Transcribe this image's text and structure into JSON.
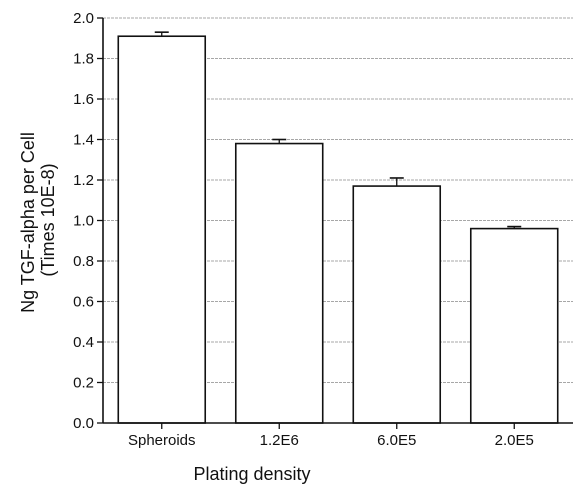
{
  "chart_data": {
    "type": "bar",
    "categories": [
      "Spheroids",
      "1.2E6",
      "6.0E5",
      "2.0E5"
    ],
    "values": [
      1.91,
      1.38,
      1.17,
      0.96
    ],
    "errors": [
      0.02,
      0.02,
      0.04,
      0.01
    ],
    "xlabel": "Plating density",
    "ylabel_lines": [
      "Ng TGF-alpha per Cell",
      "(Times 10E-8)"
    ],
    "ylim": [
      0,
      2.0
    ],
    "yticks": [
      "0.0",
      "0.2",
      "0.4",
      "0.6",
      "0.8",
      "1.0",
      "1.2",
      "1.4",
      "1.6",
      "1.8",
      "2.0"
    ],
    "grid": "horizontal",
    "legend": "none"
  }
}
